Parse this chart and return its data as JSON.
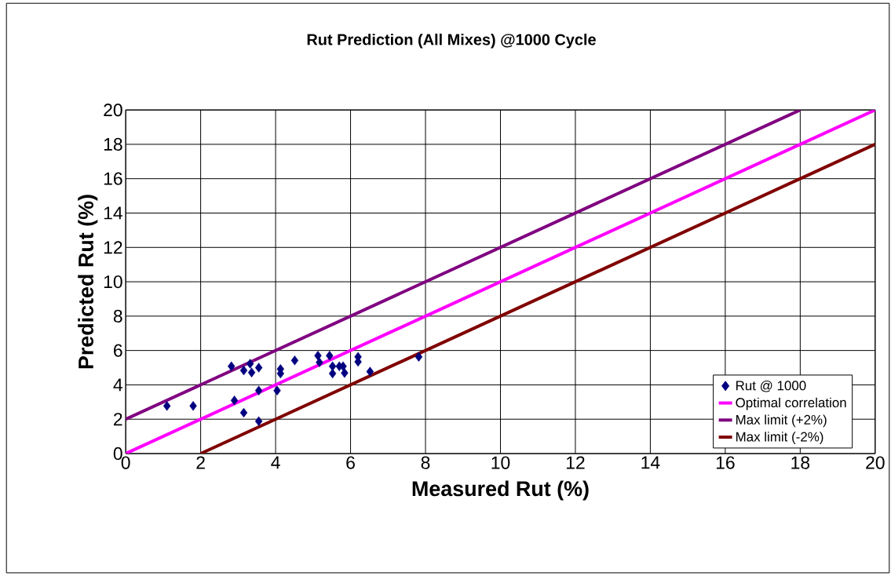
{
  "chart_data": {
    "type": "scatter",
    "title": "Rut Prediction (All Mixes) @1000 Cycle",
    "xlabel": "Measured Rut (%)",
    "ylabel": "Predicted Rut (%)",
    "xlim": [
      0,
      20
    ],
    "ylim": [
      0,
      20
    ],
    "xticks": [
      0,
      2,
      4,
      6,
      8,
      10,
      12,
      14,
      16,
      18,
      20
    ],
    "yticks": [
      0,
      2,
      4,
      6,
      8,
      10,
      12,
      14,
      16,
      18,
      20
    ],
    "grid": true,
    "legend": "bottom right",
    "series": [
      {
        "name": "Rut @ 1000",
        "marker": "diamond",
        "color": "#000080",
        "x": [
          1.1,
          1.8,
          2.82,
          2.9,
          3.15,
          3.15,
          3.32,
          3.36,
          3.55,
          3.55,
          3.55,
          4.04,
          4.13,
          4.13,
          4.51,
          5.13,
          5.17,
          5.44,
          5.52,
          5.52,
          5.7,
          5.8,
          5.84,
          6.2,
          6.2,
          6.52,
          7.82
        ],
        "values": [
          2.77,
          2.77,
          5.08,
          3.09,
          4.84,
          2.38,
          5.23,
          4.72,
          5.0,
          3.67,
          1.88,
          3.67,
          4.92,
          4.66,
          5.42,
          5.7,
          5.31,
          5.7,
          5.08,
          4.66,
          5.08,
          5.08,
          4.69,
          5.63,
          5.34,
          4.77,
          5.63
        ]
      },
      {
        "name": "Optimal correlation",
        "type": "line",
        "marker": "none",
        "color": "#ff00ff",
        "x": [
          0,
          20
        ],
        "values": [
          0,
          20
        ]
      },
      {
        "name": "Max limit (+2%)",
        "type": "line",
        "marker": "none",
        "color": "#800080",
        "x": [
          0,
          18
        ],
        "values": [
          2,
          20
        ]
      },
      {
        "name": "Max limit (-2%)",
        "type": "line",
        "marker": "none",
        "color": "#800000",
        "x": [
          2,
          20
        ],
        "values": [
          0,
          18
        ]
      }
    ]
  }
}
